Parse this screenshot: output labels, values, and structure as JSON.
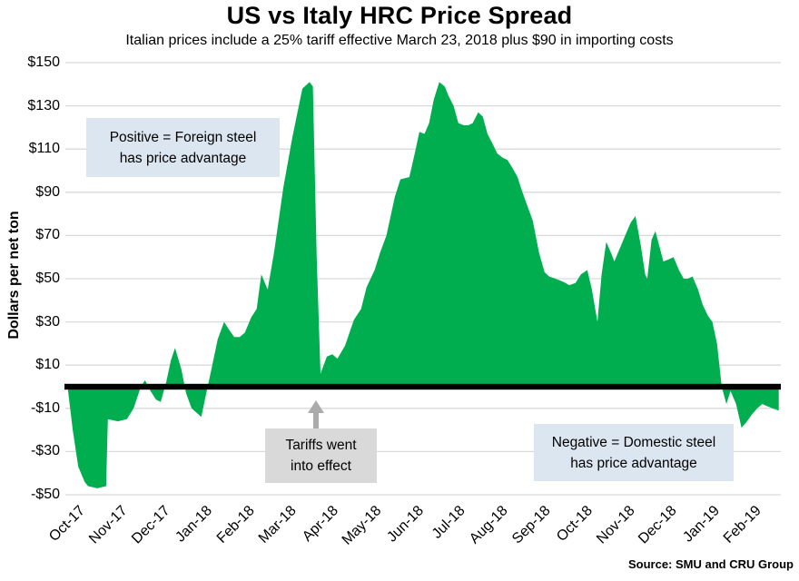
{
  "title": "US vs Italy HRC Price Spread",
  "subtitle": "Italian prices include a 25% tariff effective March 23, 2018 plus $90 in importing costs",
  "source": "Source: SMU and CRU Group",
  "y_axis": {
    "title": "Dollars per net ton",
    "tick_labels": [
      "$150",
      "$130",
      "$110",
      "$90",
      "$70",
      "$50",
      "$30",
      "$10",
      "-$10",
      "-$30",
      "-$50"
    ],
    "max": 150,
    "min": -50,
    "step": 20
  },
  "x_axis": {
    "tick_labels": [
      "Oct-17",
      "Nov-17",
      "Dec-17",
      "Jan-18",
      "Feb-18",
      "Mar-18",
      "Apr-18",
      "May-18",
      "Jun-18",
      "Jul-18",
      "Aug-18",
      "Sep-18",
      "Oct-18",
      "Nov-18",
      "Dec-18",
      "Jan-19",
      "Feb-19"
    ]
  },
  "annotations": {
    "positive": {
      "line1": "Positive = Foreign steel",
      "line2": "has price advantage"
    },
    "tariff": {
      "line1": "Tariffs went",
      "line2": "into effect"
    },
    "negative": {
      "line1": "Negative = Domestic steel",
      "line2": "has price advantage"
    }
  },
  "colors": {
    "area": "#00ae50",
    "zero_line": "#000000",
    "gridline": "#d9d9d9",
    "callout_blue": "#dce6f1",
    "callout_gray": "#d9d9d9",
    "arrow_gray": "#ababab",
    "text": "#000000"
  },
  "chart_data": {
    "type": "area",
    "title": "US vs Italy HRC Price Spread",
    "subtitle": "Italian prices include a 25% tariff effective March 23, 2018 plus $90 in importing costs",
    "xlabel": "",
    "ylabel": "Dollars per net ton",
    "ylim": [
      -50,
      150
    ],
    "baseline": 0,
    "grid": "horizontal",
    "legend": "none",
    "x_unit": "months since Oct-2017 (weekly data)",
    "categories": [
      "Oct-17",
      "Nov-17",
      "Dec-17",
      "Jan-18",
      "Feb-18",
      "Mar-18",
      "Apr-18",
      "May-18",
      "Jun-18",
      "Jul-18",
      "Aug-18",
      "Sep-18",
      "Oct-18",
      "Nov-18",
      "Dec-18",
      "Jan-19",
      "Feb-19"
    ],
    "points": [
      [
        0.0,
        -2
      ],
      [
        0.11,
        -20
      ],
      [
        0.24,
        -37
      ],
      [
        0.39,
        -44
      ],
      [
        0.47,
        -46
      ],
      [
        0.69,
        -47
      ],
      [
        0.9,
        -46
      ],
      [
        0.94,
        -15
      ],
      [
        1.18,
        -16
      ],
      [
        1.39,
        -15
      ],
      [
        1.55,
        -10
      ],
      [
        1.72,
        0
      ],
      [
        1.82,
        3
      ],
      [
        1.95,
        -2
      ],
      [
        2.08,
        -6
      ],
      [
        2.19,
        -7
      ],
      [
        2.32,
        2
      ],
      [
        2.43,
        12
      ],
      [
        2.53,
        18
      ],
      [
        2.68,
        8
      ],
      [
        2.79,
        -3
      ],
      [
        2.92,
        -10
      ],
      [
        3.15,
        -14
      ],
      [
        3.28,
        -2
      ],
      [
        3.39,
        8
      ],
      [
        3.54,
        22
      ],
      [
        3.69,
        30
      ],
      [
        3.82,
        26
      ],
      [
        3.93,
        23
      ],
      [
        4.06,
        23
      ],
      [
        4.18,
        25
      ],
      [
        4.33,
        32
      ],
      [
        4.46,
        36
      ],
      [
        4.57,
        52
      ],
      [
        4.72,
        45
      ],
      [
        4.87,
        62
      ],
      [
        5.09,
        92
      ],
      [
        5.3,
        115
      ],
      [
        5.54,
        138
      ],
      [
        5.71,
        141
      ],
      [
        5.79,
        139
      ],
      [
        5.88,
        60
      ],
      [
        5.97,
        6
      ],
      [
        6.12,
        14
      ],
      [
        6.25,
        15
      ],
      [
        6.37,
        13
      ],
      [
        6.55,
        19
      ],
      [
        6.76,
        31
      ],
      [
        6.93,
        36
      ],
      [
        7.06,
        46
      ],
      [
        7.25,
        54
      ],
      [
        7.38,
        62
      ],
      [
        7.53,
        70
      ],
      [
        7.73,
        88
      ],
      [
        7.86,
        96
      ],
      [
        8.07,
        97
      ],
      [
        8.2,
        108
      ],
      [
        8.31,
        118
      ],
      [
        8.43,
        117
      ],
      [
        8.54,
        122
      ],
      [
        8.65,
        133
      ],
      [
        8.78,
        141
      ],
      [
        8.91,
        139
      ],
      [
        8.99,
        135
      ],
      [
        9.12,
        130
      ],
      [
        9.23,
        122
      ],
      [
        9.36,
        121
      ],
      [
        9.47,
        121
      ],
      [
        9.57,
        122
      ],
      [
        9.7,
        127
      ],
      [
        9.81,
        125
      ],
      [
        9.92,
        117
      ],
      [
        10.05,
        112
      ],
      [
        10.15,
        108
      ],
      [
        10.28,
        106
      ],
      [
        10.39,
        105
      ],
      [
        10.52,
        101
      ],
      [
        10.63,
        97
      ],
      [
        10.73,
        91
      ],
      [
        10.84,
        85
      ],
      [
        10.99,
        77
      ],
      [
        11.14,
        62
      ],
      [
        11.27,
        53
      ],
      [
        11.38,
        51
      ],
      [
        11.53,
        50
      ],
      [
        11.66,
        49
      ],
      [
        11.77,
        48
      ],
      [
        11.85,
        47
      ],
      [
        12.0,
        48
      ],
      [
        12.13,
        52
      ],
      [
        12.28,
        54
      ],
      [
        12.39,
        45
      ],
      [
        12.52,
        30
      ],
      [
        12.62,
        52
      ],
      [
        12.73,
        67
      ],
      [
        12.84,
        62
      ],
      [
        12.92,
        58
      ],
      [
        13.05,
        64
      ],
      [
        13.2,
        71
      ],
      [
        13.31,
        76
      ],
      [
        13.42,
        79
      ],
      [
        13.55,
        65
      ],
      [
        13.65,
        52
      ],
      [
        13.7,
        50
      ],
      [
        13.8,
        68
      ],
      [
        13.89,
        72
      ],
      [
        14.0,
        64
      ],
      [
        14.08,
        58
      ],
      [
        14.21,
        59
      ],
      [
        14.32,
        60
      ],
      [
        14.45,
        54
      ],
      [
        14.56,
        50
      ],
      [
        14.66,
        50
      ],
      [
        14.77,
        51
      ],
      [
        14.9,
        45
      ],
      [
        15.01,
        38
      ],
      [
        15.13,
        33
      ],
      [
        15.24,
        30
      ],
      [
        15.35,
        20
      ],
      [
        15.46,
        0
      ],
      [
        15.57,
        -8
      ],
      [
        15.67,
        -2
      ],
      [
        15.8,
        -8
      ],
      [
        15.93,
        -19
      ],
      [
        16.06,
        -16
      ],
      [
        16.17,
        -13
      ],
      [
        16.3,
        -10
      ],
      [
        16.42,
        -8
      ],
      [
        16.53,
        -9
      ],
      [
        16.66,
        -10
      ],
      [
        16.81,
        -11
      ]
    ],
    "annotations": [
      "Positive = Foreign steel has price advantage",
      "Tariffs went into effect",
      "Negative = Domestic steel has price advantage"
    ]
  }
}
